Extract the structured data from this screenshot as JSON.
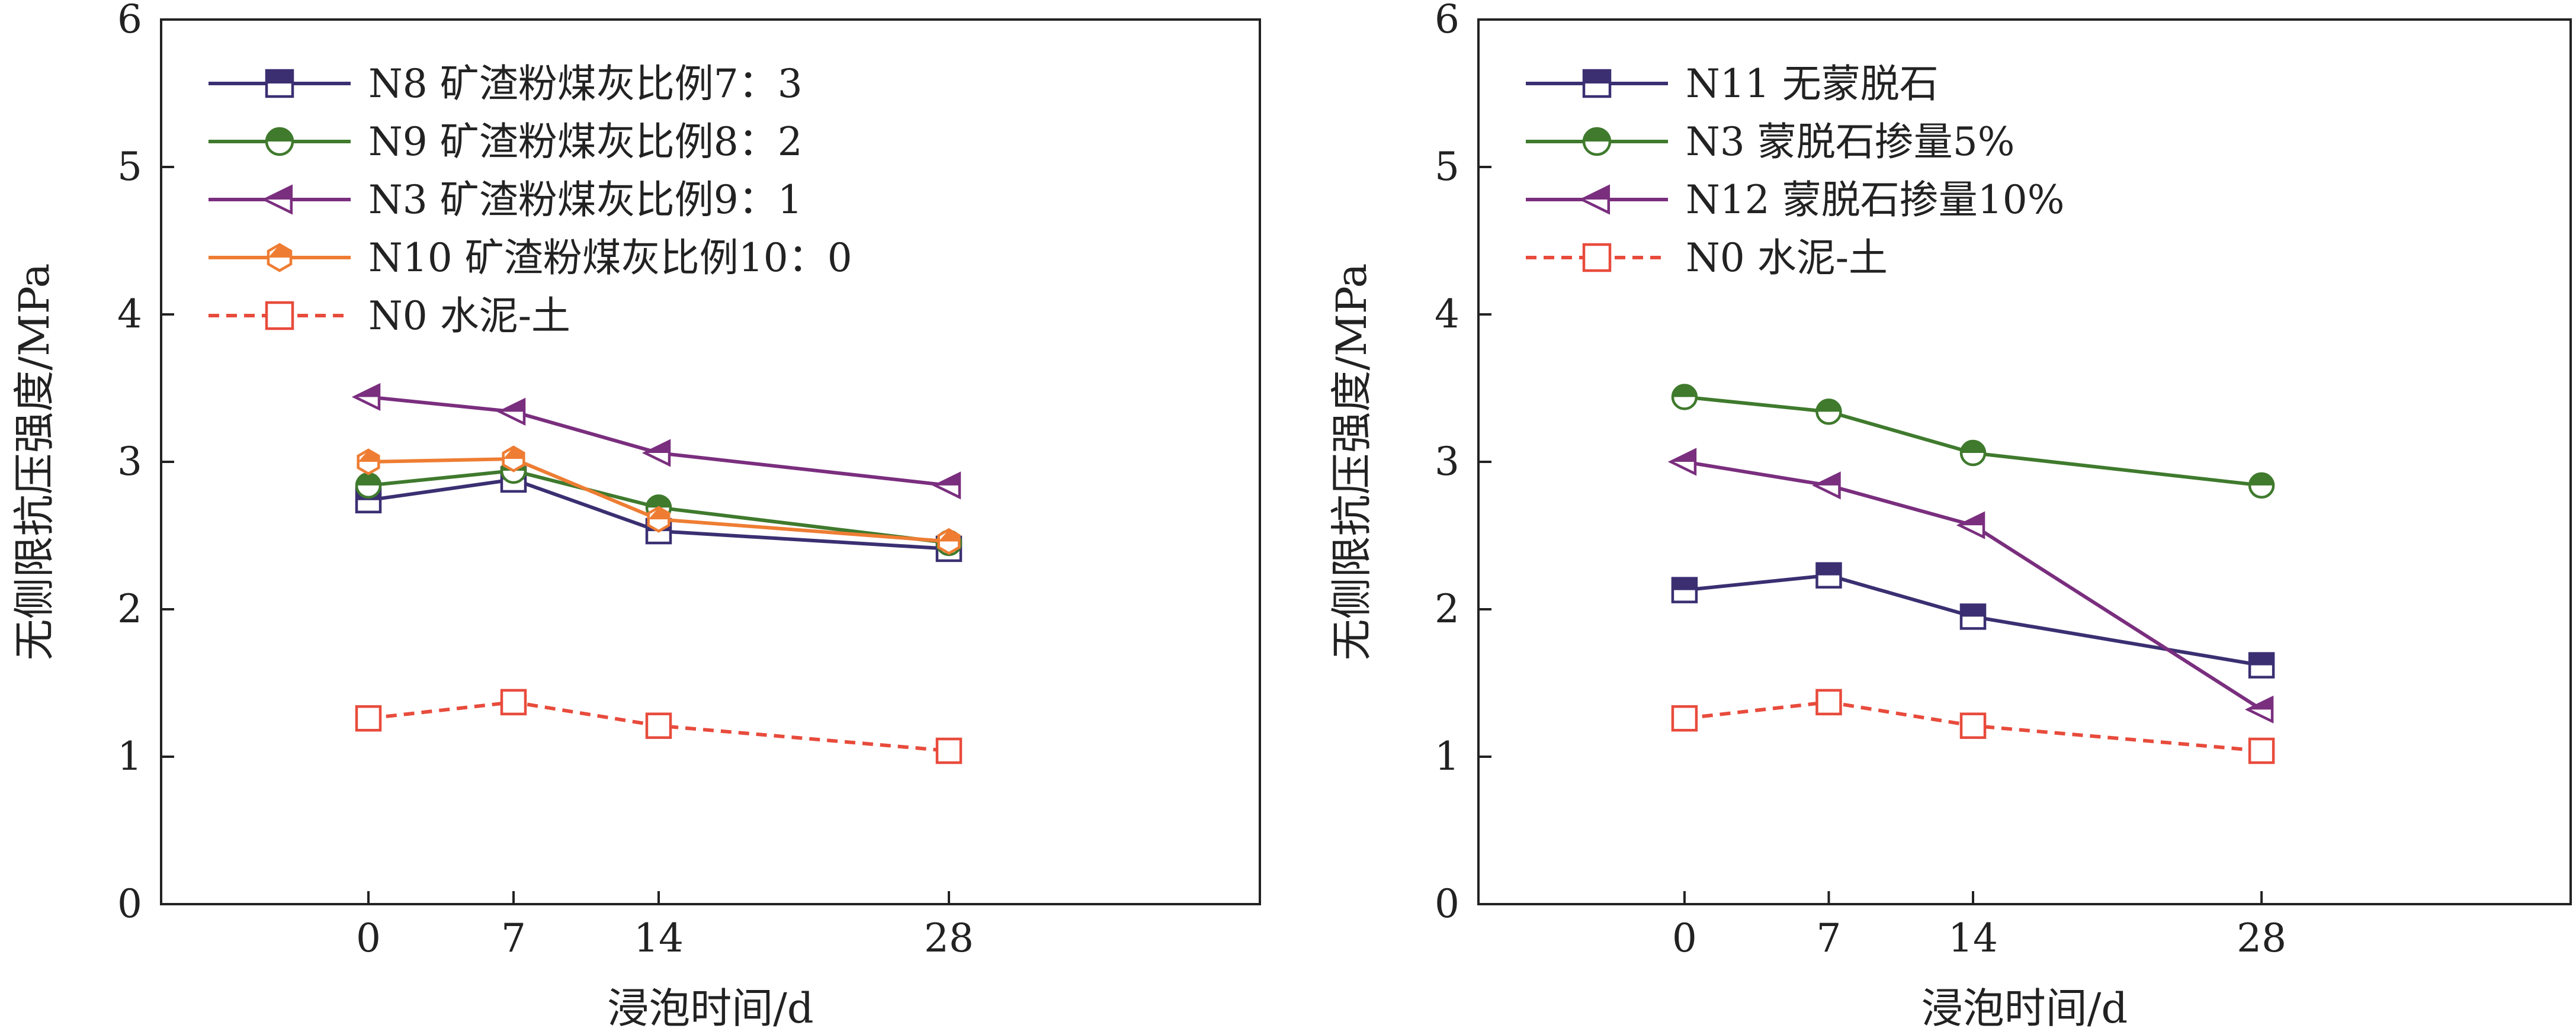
{
  "chart_data": [
    {
      "type": "line",
      "x": [
        0,
        7,
        14,
        28
      ],
      "xticks": [
        "0",
        "7",
        "14",
        "28"
      ],
      "yticks": [
        "0",
        "1",
        "2",
        "3",
        "4",
        "5",
        "6"
      ],
      "xlim": [
        -10,
        43
      ],
      "ylim": [
        0,
        6
      ],
      "xlabel": "浸泡时间/d",
      "ylabel": "无侧限抗压强度/MPa",
      "legend_position": "top-left",
      "series": [
        {
          "name": "N8 矿渣粉煤灰比例7：3",
          "values": [
            2.74,
            2.88,
            2.53,
            2.41
          ],
          "color": "#3b2f72",
          "marker": "square",
          "dashed": false
        },
        {
          "name": "N9 矿渣粉煤灰比例8：2",
          "values": [
            2.84,
            2.94,
            2.69,
            2.45
          ],
          "color": "#3f7a2d",
          "marker": "circle",
          "dashed": false
        },
        {
          "name": "N3 矿渣粉煤灰比例9：1",
          "values": [
            3.44,
            3.34,
            3.06,
            2.84
          ],
          "color": "#7a2e7e",
          "marker": "triangle-left",
          "dashed": false
        },
        {
          "name": "N10 矿渣粉煤灰比例10：0",
          "values": [
            3.0,
            3.02,
            2.61,
            2.46
          ],
          "color": "#ee7d33",
          "marker": "hexagon",
          "dashed": false
        },
        {
          "name": "N0 水泥-土",
          "values": [
            1.26,
            1.37,
            1.21,
            1.04
          ],
          "color": "#e84b3c",
          "marker": "square-open",
          "dashed": true
        }
      ]
    },
    {
      "type": "line",
      "x": [
        0,
        7,
        14,
        28
      ],
      "xticks": [
        "0",
        "7",
        "14",
        "28"
      ],
      "yticks": [
        "0",
        "1",
        "2",
        "3",
        "4",
        "5",
        "6"
      ],
      "xlim": [
        -10,
        43
      ],
      "ylim": [
        0,
        6
      ],
      "xlabel": "浸泡时间/d",
      "ylabel": "无侧限抗压强度/MPa",
      "legend_position": "top-left",
      "series": [
        {
          "name": "N11 无蒙脱石",
          "values": [
            2.13,
            2.23,
            1.95,
            1.62
          ],
          "color": "#3b2f72",
          "marker": "square",
          "dashed": false
        },
        {
          "name": "N3 蒙脱石掺量5%",
          "values": [
            3.44,
            3.34,
            3.06,
            2.84
          ],
          "color": "#3f7a2d",
          "marker": "circle",
          "dashed": false
        },
        {
          "name": "N12 蒙脱石掺量10%",
          "values": [
            3.0,
            2.84,
            2.57,
            1.32
          ],
          "color": "#7a2e7e",
          "marker": "triangle-left",
          "dashed": false
        },
        {
          "name": "N0 水泥-土",
          "values": [
            1.26,
            1.37,
            1.21,
            1.04
          ],
          "color": "#e84b3c",
          "marker": "square-open",
          "dashed": true
        }
      ]
    }
  ]
}
